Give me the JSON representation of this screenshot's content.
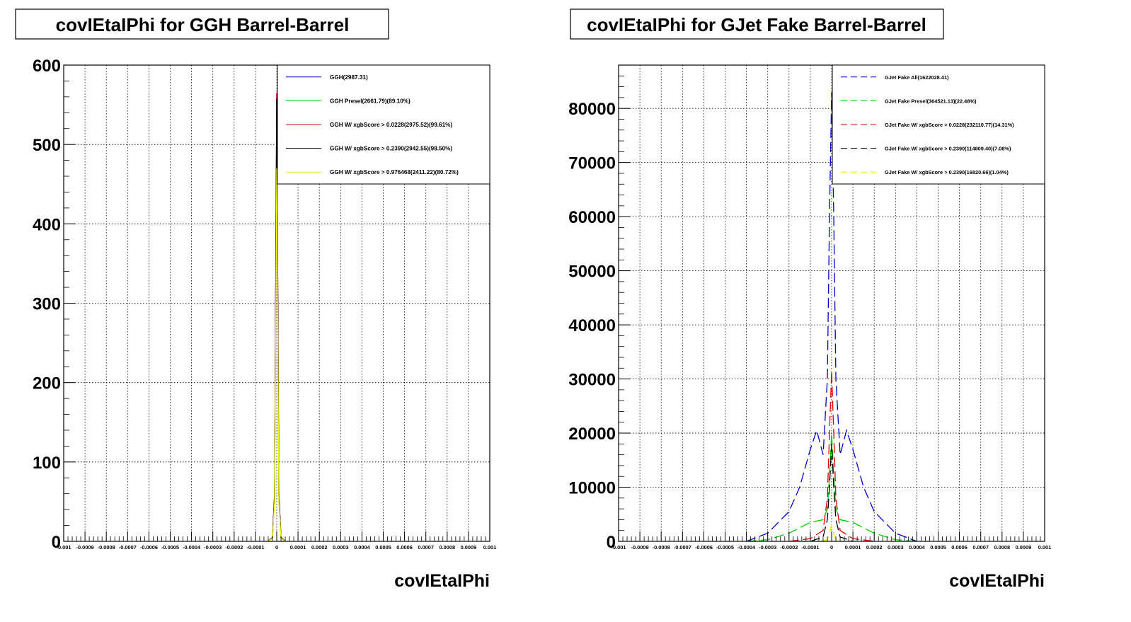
{
  "chart_data": [
    {
      "type": "line",
      "title": "covIEtaIPhi for GGH Barrel-Barrel",
      "xlabel": "covIEtaIPhi",
      "ylabel": "",
      "xlim": [
        -0.001,
        0.001
      ],
      "ylim": [
        0,
        600
      ],
      "grid": true,
      "log_y": false,
      "legend_position": "top-right",
      "x_tick_labels": [
        "-0.001",
        "-0.0009",
        "-0.0008",
        "-0.0007",
        "-0.0006",
        "-0.0005",
        "-0.0004",
        "-0.0003",
        "-0.0002",
        "-0.0001",
        "0",
        "0.0001",
        "0.0002",
        "0.0003",
        "0.0004",
        "0.0005",
        "0.0006",
        "0.0007",
        "0.0008",
        "0.0009",
        "0.001"
      ],
      "y_tick_labels": [
        "0",
        "100",
        "200",
        "300",
        "400",
        "500",
        "600"
      ],
      "series": [
        {
          "name": "GGH(2987.31)",
          "color": "#0000cc",
          "dash": "solid",
          "x": [
            -4e-05,
            -2e-05,
            -1e-05,
            0.0,
            1e-05,
            2e-05,
            4e-05
          ],
          "y": [
            0,
            5,
            60,
            565,
            60,
            5,
            0
          ]
        },
        {
          "name": "GGH Presel(2661.79)(89.10%)",
          "color": "#00cc00",
          "dash": "solid",
          "x": [
            -4e-05,
            -2e-05,
            -1e-05,
            0.0,
            1e-05,
            2e-05,
            4e-05
          ],
          "y": [
            0,
            4,
            54,
            505,
            54,
            4,
            0
          ]
        },
        {
          "name": "GGH W/ xgbScore > 0.0228(2975.52)(99.61%)",
          "color": "#dd0000",
          "dash": "solid",
          "x": [
            -4e-05,
            -2e-05,
            -1e-05,
            0.0,
            1e-05,
            2e-05,
            4e-05
          ],
          "y": [
            0,
            5,
            60,
            565,
            60,
            5,
            0
          ]
        },
        {
          "name": "GGH W/ xgbScore > 0.2390(2942.55)(98.50%)",
          "color": "#000000",
          "dash": "solid",
          "x": [
            -4e-05,
            -2e-05,
            -1e-05,
            0.0,
            1e-05,
            2e-05,
            4e-05
          ],
          "y": [
            0,
            5,
            58,
            558,
            58,
            5,
            0
          ]
        },
        {
          "name": "GGH W/ xgbScore > 0.976468(2411.22)(80.72%)",
          "color": "#f0f000",
          "dash": "solid",
          "x": [
            -4e-05,
            -2e-05,
            -1e-05,
            0.0,
            1e-05,
            2e-05,
            4e-05
          ],
          "y": [
            0,
            4,
            50,
            470,
            50,
            4,
            0
          ]
        }
      ]
    },
    {
      "type": "line",
      "title": "covIEtaIPhi for GJet Fake Barrel-Barrel",
      "xlabel": "covIEtaIPhi",
      "ylabel": "",
      "xlim": [
        -0.001,
        0.001
      ],
      "ylim": [
        0,
        88000
      ],
      "grid": true,
      "log_y": false,
      "legend_position": "top-right",
      "x_tick_labels": [
        "-0.001",
        "-0.0009",
        "-0.0008",
        "-0.0007",
        "-0.0006",
        "-0.0005",
        "-0.0004",
        "-0.0003",
        "-0.0002",
        "-0.0001",
        "0",
        "0.0001",
        "0.0002",
        "0.0003",
        "0.0004",
        "0.0005",
        "0.0006",
        "0.0007",
        "0.0008",
        "0.0009",
        "0.001"
      ],
      "y_tick_labels": [
        "0",
        "10000",
        "20000",
        "30000",
        "40000",
        "50000",
        "60000",
        "70000",
        "80000"
      ],
      "y_ticks": [
        0,
        10000,
        20000,
        30000,
        40000,
        50000,
        60000,
        70000,
        80000
      ],
      "series": [
        {
          "name": "GJet Fake All(1622028.41)",
          "color": "#0000cc",
          "dash": "dashed",
          "x": [
            -0.0004,
            -0.0003,
            -0.0002,
            -0.00015,
            -0.0001,
            -7e-05,
            -4e-05,
            -2e-05,
            -1e-05,
            0.0,
            1e-05,
            2e-05,
            4e-05,
            7e-05,
            0.0001,
            0.00015,
            0.0002,
            0.0003,
            0.0004
          ],
          "y": [
            0,
            1500,
            5500,
            10000,
            17000,
            20500,
            16000,
            30000,
            60000,
            83000,
            60000,
            30000,
            16000,
            20500,
            17000,
            10000,
            5500,
            1500,
            0
          ]
        },
        {
          "name": "GJet Fake Presel(364521.13)(22.48%)",
          "color": "#00cc00",
          "dash": "dashed",
          "x": [
            -0.0004,
            -0.0003,
            -0.0002,
            -0.0001,
            -4e-05,
            -2e-05,
            -1e-05,
            0.0,
            1e-05,
            2e-05,
            4e-05,
            0.0001,
            0.0002,
            0.0003,
            0.0004
          ],
          "y": [
            0,
            300,
            1500,
            3500,
            4000,
            6000,
            12000,
            20000,
            12000,
            6000,
            4000,
            3500,
            1500,
            300,
            0
          ]
        },
        {
          "name": "GJet Fake W/ xgbScore > 0.0228(232110.77)(14.31%)",
          "color": "#dd0000",
          "dash": "dashed",
          "x": [
            -0.0002,
            -0.0001,
            -4e-05,
            -2e-05,
            -1e-05,
            0.0,
            1e-05,
            2e-05,
            4e-05,
            0.0001,
            0.0002
          ],
          "y": [
            0,
            500,
            2000,
            8000,
            20000,
            31500,
            20000,
            8000,
            2000,
            500,
            0
          ]
        },
        {
          "name": "GJet Fake W/ xgbScore > 0.2390(114809.40)(7.08%)",
          "color": "#000000",
          "dash": "dashed",
          "x": [
            -0.0001,
            -4e-05,
            -2e-05,
            -1e-05,
            0.0,
            1e-05,
            2e-05,
            4e-05,
            0.0001
          ],
          "y": [
            0,
            800,
            4000,
            10000,
            18000,
            10000,
            4000,
            800,
            0
          ]
        },
        {
          "name": "GJet Fake W/ xgbScore > 0.2390(16820.66)(1.04%)",
          "color": "#f0f000",
          "dash": "dashed",
          "x": [
            -5e-05,
            -2e-05,
            -1e-05,
            0.0,
            1e-05,
            2e-05,
            5e-05
          ],
          "y": [
            0,
            300,
            1500,
            3000,
            1500,
            300,
            0
          ]
        }
      ]
    }
  ]
}
